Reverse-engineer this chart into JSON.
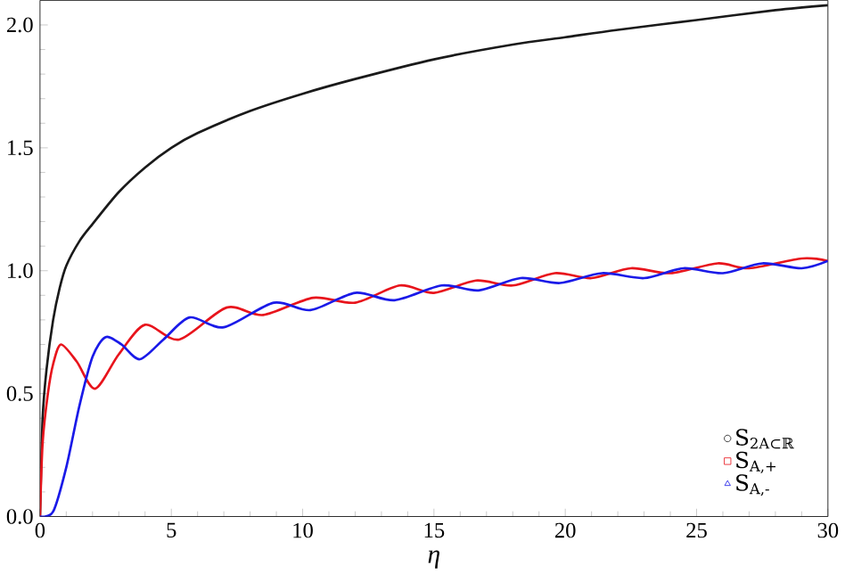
{
  "chart_data": {
    "type": "line",
    "xlabel": "η",
    "xlim": [
      0,
      30
    ],
    "ylim": [
      0,
      2.1
    ],
    "xticks": [
      0,
      5,
      10,
      15,
      20,
      25,
      30
    ],
    "yticks": [
      {
        "value": 0,
        "label": "0.0"
      },
      0.5,
      {
        "value": 1,
        "label": "1.0"
      },
      1.5,
      {
        "value": 2,
        "label": "2.0"
      }
    ],
    "legend": "bottom right",
    "grid": false,
    "series": [
      {
        "name": "S$_{2A⊂ℝ}$",
        "color": "#1a1a1a",
        "x": [
          0,
          0.1,
          0.25,
          0.5,
          0.75,
          1,
          1.5,
          2,
          3,
          4,
          5,
          6,
          8,
          10,
          12,
          15,
          18,
          20,
          22,
          25,
          28,
          30
        ],
        "values": [
          0,
          0.4,
          0.6,
          0.8,
          0.93,
          1.02,
          1.12,
          1.19,
          1.32,
          1.42,
          1.5,
          1.56,
          1.65,
          1.72,
          1.78,
          1.86,
          1.92,
          1.95,
          1.98,
          2.02,
          2.06,
          2.08
        ]
      },
      {
        "name": "S$_{A,+}$",
        "color": "#e8141c",
        "x": [
          0,
          0.1,
          0.3,
          0.5,
          0.8,
          1.4,
          2.1,
          3,
          4,
          5.3,
          7.1,
          8.5,
          10.4,
          12,
          13.7,
          15,
          16.6,
          18,
          19.6,
          21,
          22.5,
          24,
          25.8,
          27,
          29,
          30
        ],
        "values": [
          0,
          0.3,
          0.5,
          0.62,
          0.7,
          0.63,
          0.52,
          0.66,
          0.78,
          0.72,
          0.85,
          0.82,
          0.89,
          0.87,
          0.94,
          0.91,
          0.96,
          0.94,
          0.99,
          0.97,
          1.01,
          0.99,
          1.03,
          1.01,
          1.05,
          1.04
        ]
      },
      {
        "name": "S$_{A,-}$",
        "color": "#1a1ae8",
        "x": [
          0,
          0.5,
          1,
          1.5,
          2,
          2.5,
          3.1,
          3.8,
          4.7,
          5.7,
          7,
          8.9,
          10.3,
          12,
          13.5,
          15.3,
          16.7,
          18.3,
          19.8,
          21.4,
          23,
          24.5,
          26,
          27.5,
          29,
          30
        ],
        "values": [
          0,
          0.02,
          0.2,
          0.45,
          0.65,
          0.73,
          0.7,
          0.64,
          0.72,
          0.81,
          0.77,
          0.87,
          0.84,
          0.91,
          0.88,
          0.94,
          0.92,
          0.97,
          0.95,
          0.99,
          0.97,
          1.01,
          0.99,
          1.03,
          1.01,
          1.04
        ]
      }
    ]
  }
}
